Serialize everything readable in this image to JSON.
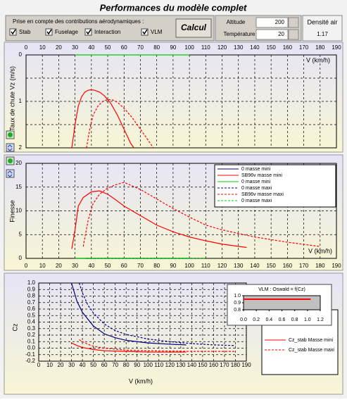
{
  "title": "Performances du modèle complet",
  "controls": {
    "caption": "Prise en compte des contributions aérodynamiques :",
    "checkboxes": [
      "Stab",
      "Fuselage",
      "Interaction",
      "VLM"
    ],
    "button": "Calcul",
    "altitude": {
      "label": "Altitude",
      "value": 200
    },
    "temperature": {
      "label": "Température",
      "value": 20
    },
    "density": {
      "label": "Densité air",
      "value": 1.17
    }
  },
  "chart_data": [
    {
      "type": "line",
      "x_label": "V (km/h)",
      "y_label": "Taux de chute Vz (m/s)",
      "xlim": [
        0,
        190
      ],
      "xticks": [
        0,
        10,
        20,
        30,
        40,
        50,
        60,
        70,
        80,
        90,
        100,
        110,
        120,
        130,
        140,
        150,
        160,
        170,
        180,
        190
      ],
      "ylim": [
        0,
        2
      ],
      "y_inverted": true,
      "yticks": [
        0,
        1,
        2
      ],
      "minor_yticks": [
        0.5,
        1.5
      ],
      "grid": true,
      "legend": false,
      "series": [
        {
          "color": "#ff0000",
          "dash": false,
          "x": [
            28,
            30,
            32,
            34,
            36,
            38,
            40,
            42,
            45,
            48,
            52,
            56,
            60,
            64,
            66
          ],
          "values": [
            2,
            1.5,
            1.1,
            0.9,
            0.8,
            0.76,
            0.75,
            0.76,
            0.8,
            0.88,
            1.05,
            1.3,
            1.6,
            1.9,
            2
          ]
        },
        {
          "color": "#ff0000",
          "dash": true,
          "x": [
            37,
            39,
            41,
            44,
            47,
            50,
            53,
            56,
            60,
            65,
            70,
            75,
            78
          ],
          "values": [
            2,
            1.6,
            1.3,
            1.1,
            1.0,
            0.96,
            0.97,
            1.02,
            1.15,
            1.35,
            1.6,
            1.85,
            2
          ]
        },
        {
          "color": "#00cc00",
          "dash": false,
          "x": [
            30,
            100
          ],
          "values": [
            0,
            0
          ]
        }
      ]
    },
    {
      "type": "line",
      "x_label": "V (km/h)",
      "y_label": "Finesse",
      "xlim": [
        0,
        190
      ],
      "xticks": [
        0,
        10,
        20,
        30,
        40,
        50,
        60,
        70,
        80,
        90,
        100,
        110,
        120,
        130,
        140,
        150,
        160,
        170,
        180,
        190
      ],
      "ylim": [
        0,
        20
      ],
      "y_inverted": false,
      "yticks": [
        0,
        5,
        10,
        15,
        20
      ],
      "minor_yticks": [],
      "grid": true,
      "legend": true,
      "series": [
        {
          "name": "0 masse mini",
          "color": "#000080",
          "dash": false,
          "x": [
            30,
            100
          ],
          "values": [
            0,
            0
          ]
        },
        {
          "name": "SB96v masse mini",
          "color": "#ff0000",
          "dash": false,
          "x": [
            28,
            30,
            32,
            35,
            40,
            45,
            50,
            55,
            60,
            70,
            80,
            90,
            100,
            110,
            120,
            135
          ],
          "values": [
            2,
            6,
            11,
            12.8,
            14,
            14.2,
            13.5,
            12.3,
            11,
            9,
            7,
            5.6,
            4.5,
            3.7,
            3,
            2.3
          ]
        },
        {
          "name": "0 masse mini",
          "color": "#00cc00",
          "dash": false,
          "x": [
            30,
            100
          ],
          "values": [
            0,
            0
          ]
        },
        {
          "name": "0 masse maxi",
          "color": "#000080",
          "dash": true,
          "x": [
            37,
            110
          ],
          "values": [
            0,
            0
          ]
        },
        {
          "name": "SB96v masse maxi",
          "color": "#ff0000",
          "dash": true,
          "x": [
            35,
            38,
            41,
            45,
            50,
            55,
            60,
            70,
            80,
            90,
            100,
            110,
            120,
            140,
            160,
            180
          ],
          "values": [
            2.5,
            8,
            11.5,
            13.5,
            14.8,
            15.5,
            16,
            14.5,
            12.5,
            10.5,
            8.7,
            7,
            6,
            4.5,
            3.4,
            2.5
          ]
        },
        {
          "name": "0 masse maxi",
          "color": "#00cc00",
          "dash": true,
          "x": [
            37,
            110
          ],
          "values": [
            0,
            0
          ]
        }
      ]
    },
    {
      "type": "line",
      "x_label": "V (km/h)",
      "y_label": "Cz",
      "xlim": [
        0,
        190
      ],
      "xticks": [
        0,
        10,
        20,
        30,
        40,
        50,
        60,
        70,
        80,
        90,
        100,
        110,
        120,
        130,
        140,
        150,
        160,
        170,
        180,
        190
      ],
      "ylim": [
        -0.2,
        1.0
      ],
      "y_inverted": false,
      "yticks": [
        {
          "value": 1.0,
          "label": "1.0"
        },
        0.9,
        0.8,
        0.7,
        0.6,
        0.5,
        0.4,
        0.3,
        0.2,
        0.1,
        {
          "value": 0,
          "label": "0.0"
        },
        -0.1,
        -0.2
      ],
      "minor_yticks": [],
      "grid": true,
      "legend": true,
      "series": [
        {
          "color": "#000080",
          "dash": false,
          "x": [
            30,
            35,
            40,
            50,
            60,
            70,
            80,
            100,
            120,
            135
          ],
          "values": [
            1.0,
            0.72,
            0.55,
            0.34,
            0.22,
            0.16,
            0.12,
            0.08,
            0.06,
            0.05
          ]
        },
        {
          "color": "#000080",
          "dash": true,
          "x": [
            37,
            40,
            45,
            50,
            60,
            70,
            80,
            100,
            120,
            140,
            160,
            180
          ],
          "values": [
            1.0,
            0.85,
            0.66,
            0.54,
            0.37,
            0.27,
            0.21,
            0.14,
            0.1,
            0.07,
            0.05,
            0.04
          ]
        },
        {
          "name": "Cz_stab Masse mini",
          "color": "#ff0000",
          "dash": false,
          "x": [
            30,
            35,
            40,
            50,
            60,
            80,
            100,
            135
          ],
          "values": [
            0.08,
            0.04,
            0.01,
            -0.02,
            -0.04,
            -0.05,
            -0.06,
            -0.06
          ]
        },
        {
          "name": "Cz_stab Masse maxi",
          "color": "#ff0000",
          "dash": true,
          "x": [
            37,
            40,
            45,
            50,
            60,
            80,
            100,
            140,
            180
          ],
          "values": [
            0.13,
            0.1,
            0.06,
            0.03,
            0.0,
            -0.03,
            -0.04,
            -0.05,
            -0.05
          ]
        }
      ]
    },
    {
      "type": "line",
      "title": "VLM : Oswald = f(Cz)",
      "xlim": [
        0,
        1.2
      ],
      "xticks": [
        {
          "value": 0,
          "label": "0.0"
        },
        0.2,
        0.4,
        0.6,
        0.8,
        {
          "value": 1.0,
          "label": "1.0"
        },
        1.2
      ],
      "ylim": [
        0.8,
        1.0
      ],
      "y_inverted": false,
      "yticks": [
        {
          "value": 1.0,
          "label": "1.0"
        },
        0.9,
        0.8
      ],
      "minor_yticks": [],
      "grid": false,
      "legend": false,
      "series": [
        {
          "color": "#ff0000",
          "dash": false,
          "x": [
            0,
            1.05
          ],
          "values": [
            0.95,
            0.95
          ]
        }
      ]
    }
  ]
}
